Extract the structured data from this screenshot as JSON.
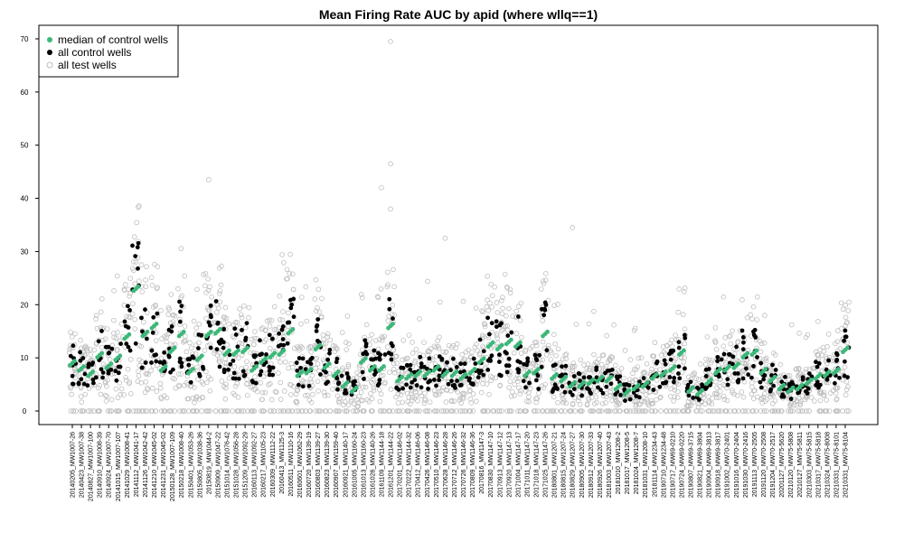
{
  "chart_data": {
    "type": "scatter",
    "title": "Mean Firing Rate AUC by apid (where wllq==1)",
    "xlabel": "",
    "ylabel": "",
    "ylim": [
      0,
      70
    ],
    "yticks": [
      0,
      10,
      20,
      30,
      40,
      50,
      60,
      70
    ],
    "grid": false,
    "legend_position": "top-left",
    "colors": {
      "median": "#3cb878",
      "control": "#000000",
      "test": "#bdbdbd"
    },
    "legend": [
      "median of control wells",
      "all control wells",
      "all test wells"
    ],
    "categories": [
      "20140205_MW1007-26",
      "20140423_MW1007-38",
      "20140827_MW1007-100",
      "20140910_MW1008-39",
      "20140924_MW1007-70",
      "20141015_MW1007-107",
      "20141029_MW1008-41",
      "20141112_MW1041-17",
      "20141126_MW1042-42",
      "20141210_MW1045-02",
      "20141231_MW1045-02",
      "20150128_MW1007-109",
      "20150218_MW1008-40",
      "20150401_MW1053-26",
      "20150805_MW1038-36",
      "20150819_MW1044-2",
      "20150909_MW1047-22",
      "20151014_MW1076-42",
      "20151028_MW1056-28",
      "20151209_MW1092-29",
      "20160113_MW1092-27",
      "20160217_MW1105-23",
      "20160309_MW1112-22",
      "20160413_MW1125-3",
      "20160511_MW1110-16",
      "20160601_MW1062-29",
      "20160720_MW1139-19",
      "20160803_MW1139-27",
      "20160823_MW1139-30",
      "20160907_MW1159-40",
      "20160921_MW1140-17",
      "20161005_MW1160-24",
      "20161013_MW1160-23",
      "20161026_MW1140-26",
      "20161109_MW1144-18",
      "20161201_MW1144-22",
      "20170201_MW1146-02",
      "20170222_MW1144-32",
      "20170412_MW1146-06",
      "20170426_MW1146-08",
      "20170510_MW1146-23",
      "20170628_MW1146-28",
      "20170712_MW1146-26",
      "20170726_MW1146-32",
      "20170809_MW1146-36",
      "20170816_MW1147-3",
      "20170830_MW1147-10",
      "20170913_MW1147-12",
      "20170920_MW1147-13",
      "20171004_MW1147-17",
      "20171011_MW1147-20",
      "20171018_MW1147-23",
      "20171025_MW1147-26",
      "20180801_MW1207-21",
      "20180815_MW1207-24",
      "20180829_MW1207-27",
      "20180905_MW1207-30",
      "20180912_MW1207-33",
      "20180926_MW1207-40",
      "20181003_MW1207-43",
      "20181010_MW1208-2",
      "20181017_MW1208-5",
      "20181024_MW1208-7",
      "20181031_MW1208-10",
      "20181114_MW1234-43",
      "20190710_MW1234-48",
      "20190717_MW69-0210",
      "20190724_MW69-0220",
      "20190807_MW69-3715",
      "20190821_MW69-3804",
      "20190904_MW69-3813",
      "20190918_MW69-3817",
      "20191002_MW70-2401",
      "20191016_MW70-2404",
      "20191030_MW70-2416",
      "20191113_MW70-2505",
      "20191120_MW70-2508",
      "20191204_MW70-2517",
      "20201127_MW75-5620",
      "20210120_MW75-5808",
      "20210127_MW75-5811",
      "20210303_MW75-5815",
      "20210317_MW75-5818",
      "20210324_MW75-8008",
      "20210331_MW75-8101",
      "20210331_MW75-8104"
    ],
    "median_by_apid": [
      9.0,
      8.0,
      7.0,
      10.5,
      8.5,
      10.0,
      14.0,
      23.0,
      14.5,
      16.0,
      8.0,
      11.5,
      14.5,
      7.5,
      10.0,
      14.5,
      15.0,
      11.0,
      11.0,
      11.5,
      8.0,
      9.5,
      10.5,
      11.0,
      15.0,
      7.0,
      7.5,
      12.0,
      8.5,
      7.0,
      5.0,
      4.0,
      9.5,
      8.0,
      8.0,
      16.0,
      6.0,
      6.5,
      7.0,
      7.0,
      8.0,
      7.0,
      7.0,
      6.5,
      7.5,
      9.5,
      12.5,
      12.0,
      13.0,
      12.5,
      7.0,
      7.5,
      14.5,
      6.5,
      6.0,
      5.0,
      5.0,
      5.5,
      6.0,
      6.0,
      4.5,
      3.5,
      4.5,
      5.0,
      6.5,
      7.0,
      8.0,
      11.0,
      4.0,
      3.5,
      5.5,
      7.5,
      8.0,
      8.5,
      10.5,
      11.0,
      7.5,
      6.0,
      4.5,
      4.0,
      4.5,
      5.5,
      6.5,
      7.0,
      7.5,
      11.5
    ]
  }
}
